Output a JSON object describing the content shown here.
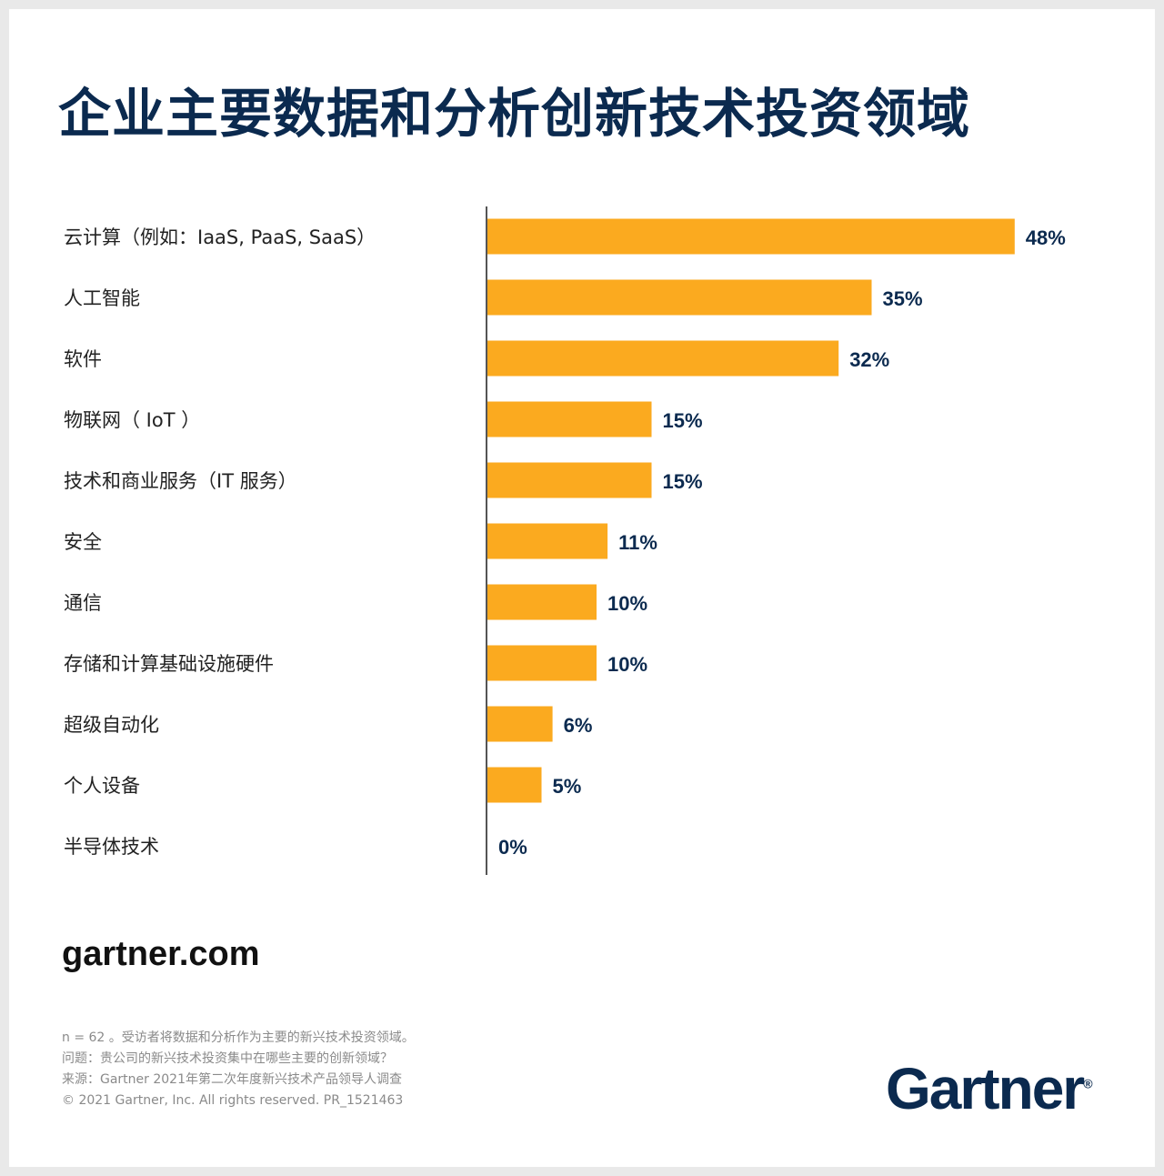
{
  "chart_data": {
    "type": "bar",
    "orientation": "horizontal",
    "title": "企业主要数据和分析创新技术投资领域",
    "categories": [
      "云计算（例如：IaaS, PaaS, SaaS）",
      "人工智能",
      "软件",
      "物联网（ IoT ）",
      "技术和商业服务（IT 服务）",
      "安全",
      "通信",
      "存储和计算基础设施硬件",
      "超级自动化",
      "个人设备",
      "半导体技术"
    ],
    "values": [
      48,
      35,
      32,
      15,
      15,
      11,
      10,
      10,
      6,
      5,
      0
    ],
    "labels": [
      "48%",
      "35%",
      "32%",
      "15%",
      "15%",
      "11%",
      "10%",
      "10%",
      "6%",
      "5%",
      "0%"
    ],
    "xlim": [
      0,
      50
    ],
    "grid": false,
    "bar_color": "#FBAA1F",
    "label_color": "#0b2a4f"
  },
  "footer": {
    "site": "gartner.com",
    "notes": [
      "n = 62 。受访者将数据和分析作为主要的新兴技术投资领域。",
      "问题：贵公司的新兴技术投资集中在哪些主要的创新领域？",
      "来源：Gartner 2021年第二次年度新兴技术产品领导人调查",
      "© 2021 Gartner, Inc. All rights reserved. PR_1521463"
    ],
    "logo": "Gartner",
    "logo_mark": "®"
  }
}
